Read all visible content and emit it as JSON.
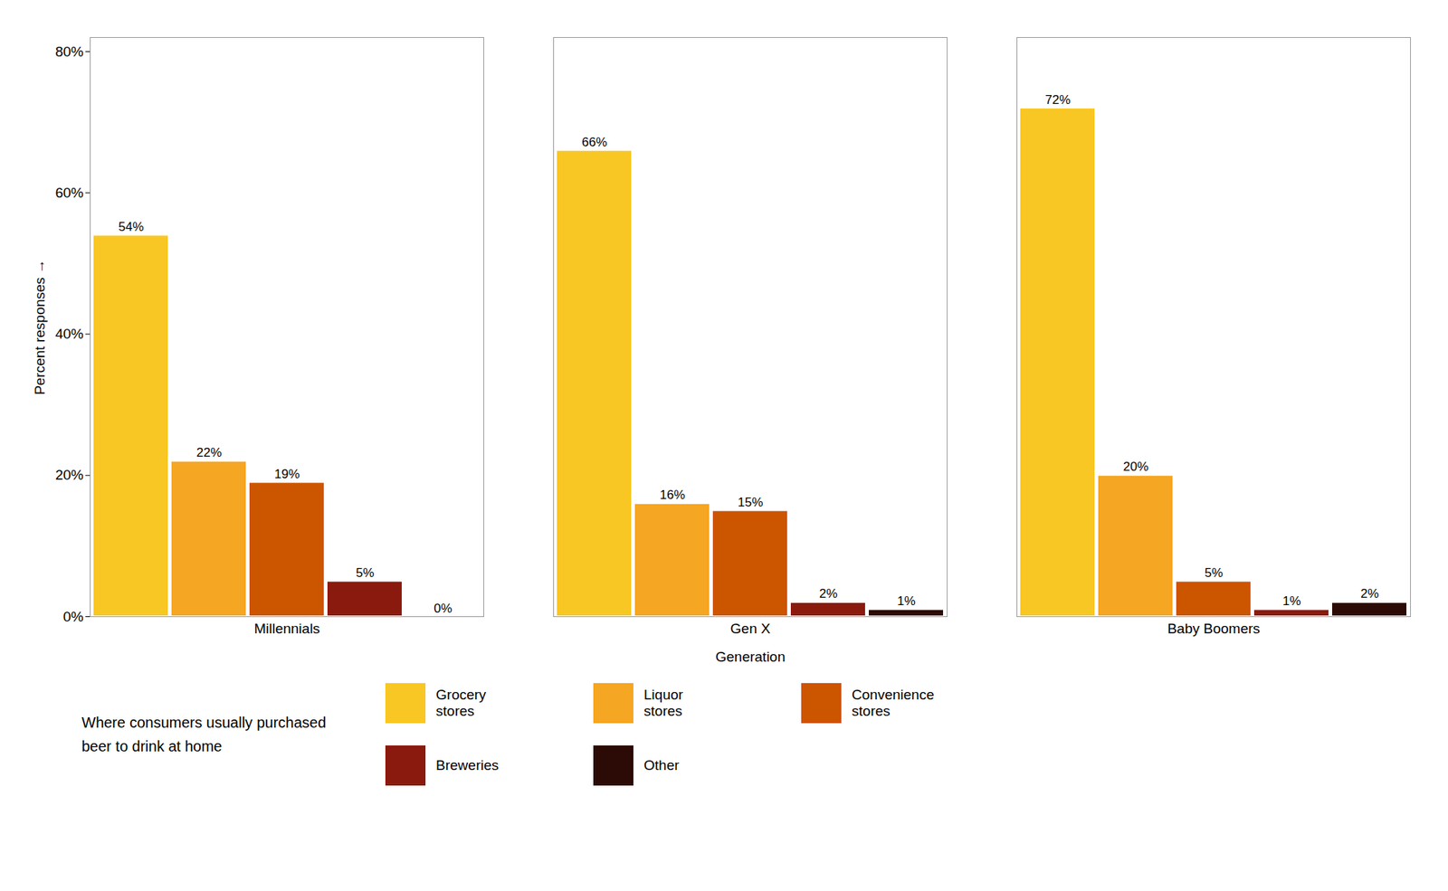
{
  "chart_data": {
    "type": "bar",
    "xlabel": "Generation",
    "ylabel": "Percent responses",
    "legend_title": "Where consumers usually purchased\nbeer to drink at home",
    "categories": [
      "Millennials",
      "Gen X",
      "Baby Boomers"
    ],
    "series": [
      {
        "name": "Grocery\nstores",
        "color": "#F9C724",
        "values": [
          54,
          66,
          72
        ],
        "value_labels": [
          "54%",
          "66%",
          "72%"
        ]
      },
      {
        "name": "Liquor\nstores",
        "color": "#F5A623",
        "values": [
          22,
          16,
          20
        ],
        "value_labels": [
          "22%",
          "16%",
          "20%"
        ]
      },
      {
        "name": "Convenience\nstores",
        "color": "#CC5500",
        "values": [
          19,
          15,
          5
        ],
        "value_labels": [
          "19%",
          "15%",
          "5%"
        ]
      },
      {
        "name": "Breweries",
        "color": "#8B1A0E",
        "values": [
          5,
          2,
          1
        ],
        "value_labels": [
          "5%",
          "2%",
          "1%"
        ]
      },
      {
        "name": "Other",
        "color": "#2C0A05",
        "values": [
          0,
          1,
          2
        ],
        "value_labels": [
          "0%",
          "1%",
          "2%"
        ]
      }
    ],
    "ylim": [
      0,
      82
    ],
    "yticks": [
      {
        "value": 0,
        "label": "0%"
      },
      {
        "value": 20,
        "label": "20%"
      },
      {
        "value": 40,
        "label": "40%"
      },
      {
        "value": 60,
        "label": "60%"
      },
      {
        "value": 80,
        "label": "80%"
      }
    ],
    "grid": false,
    "legend": "bottom",
    "data_labels": true
  }
}
